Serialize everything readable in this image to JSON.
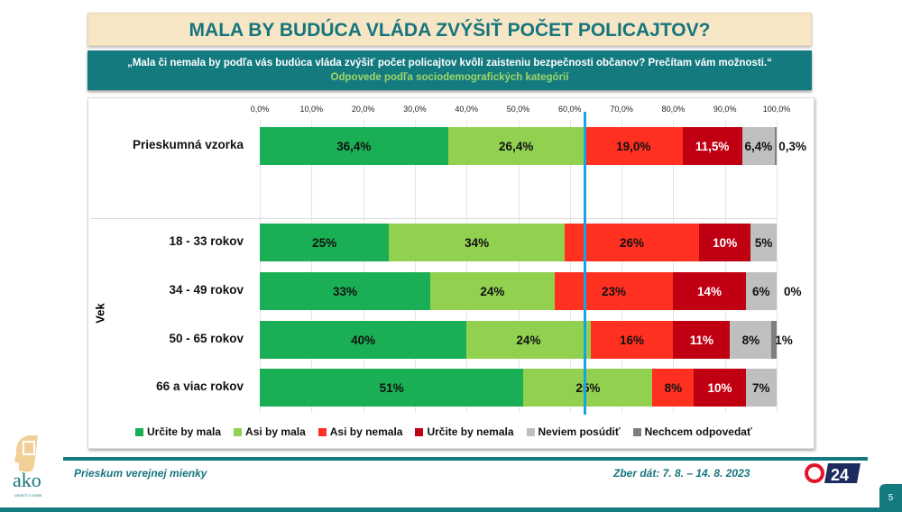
{
  "title": "MALA BY BUDÚCA VLÁDA ZVÝŠIŤ POČET POLICAJTOV?",
  "question": "„Mala či nemala by podľa vás budúca vláda zvýšiť počet policajtov kvôli zaisteniu bezpečnosti občanov? Prečítam vám možnosti.“",
  "subtitle": "Odpovede podľa sociodemografických kategórií",
  "chart_data": {
    "type": "bar",
    "orientation": "horizontal-stacked-100",
    "xlim": [
      0,
      100
    ],
    "x_ticks": [
      "0,0%",
      "10,0%",
      "20,0%",
      "30,0%",
      "40,0%",
      "50,0%",
      "60,0%",
      "70,0%",
      "80,0%",
      "90,0%",
      "100,0%"
    ],
    "group_label": "Vek",
    "categories": [
      "Prieskumná vzorka",
      "18 - 33 rokov",
      "34 - 49 rokov",
      "50 - 65 rokov",
      "66 a viac rokov"
    ],
    "series": [
      {
        "name": "Určite by mala",
        "color": "#1aaf54",
        "values": [
          36.4,
          25,
          33,
          40,
          51
        ],
        "labels": [
          "36,4%",
          "25%",
          "33%",
          "40%",
          "51%"
        ]
      },
      {
        "name": "Asi by mala",
        "color": "#92d050",
        "values": [
          26.4,
          34,
          24,
          24,
          25
        ],
        "labels": [
          "26,4%",
          "34%",
          "24%",
          "24%",
          "25%"
        ]
      },
      {
        "name": "Asi by nemala",
        "color": "#ff3020",
        "values": [
          19.0,
          26,
          23,
          16,
          8
        ],
        "labels": [
          "19,0%",
          "26%",
          "23%",
          "16%",
          "8%"
        ]
      },
      {
        "name": "Určite by nemala",
        "color": "#c00012",
        "values": [
          11.5,
          10,
          14,
          11,
          10
        ],
        "labels": [
          "11,5%",
          "10%",
          "14%",
          "11%",
          "10%"
        ]
      },
      {
        "name": "Neviem posúdiť",
        "color": "#bfbfbf",
        "values": [
          6.4,
          5,
          6,
          8,
          7
        ],
        "labels": [
          "6,4%",
          "5%",
          "6%",
          "8%",
          "7%"
        ]
      },
      {
        "name": "Nechcem odpovedať",
        "color": "#7f7f7f",
        "values": [
          0.3,
          0,
          0,
          1,
          0
        ],
        "labels": [
          "0,3%",
          "",
          "0%",
          "1%",
          ""
        ]
      }
    ],
    "reference_line": {
      "value": 62.8,
      "color": "#1ba3e0"
    },
    "legend": "bottom"
  },
  "footer": {
    "survey": "Prieskum verejnej mienky",
    "dates": "Zber dát: 7. 8. – 14. 8. 2023",
    "page": "5",
    "logo": "ako",
    "logo_tagline": "VEDIEŤ O SEBE",
    "tv_logo": "24"
  }
}
